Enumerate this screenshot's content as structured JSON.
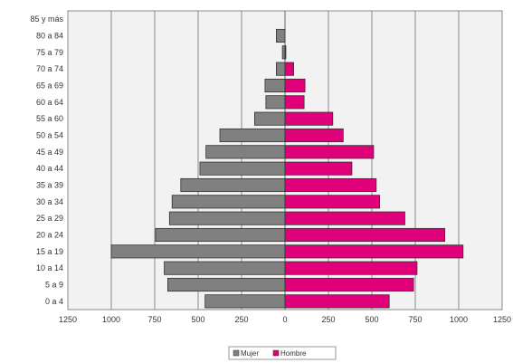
{
  "chart_data": {
    "type": "bar",
    "orientation": "horizontal",
    "categories": [
      "0 a 4",
      "5 a 9",
      "10 a 14",
      "15 a 19",
      "20 a 24",
      "25 a 29",
      "30 a 34",
      "35 a 39",
      "40 a 44",
      "45 a 49",
      "50 a 54",
      "55 a 60",
      "60 a 64",
      "65 a 69",
      "70 a 74",
      "75 a 79",
      "80 a 84",
      "85 y más"
    ],
    "series": [
      {
        "name": "Mujer",
        "color": "#808080",
        "values": [
          460,
          675,
          695,
          1000,
          745,
          665,
          650,
          600,
          490,
          455,
          375,
          175,
          110,
          115,
          50,
          15,
          50,
          0
        ]
      },
      {
        "name": "Hombre",
        "color": "#e0007a",
        "values": [
          600,
          740,
          760,
          1025,
          920,
          690,
          545,
          525,
          385,
          510,
          335,
          275,
          110,
          115,
          50,
          5,
          0,
          0
        ]
      }
    ],
    "xlim": [
      -1250,
      1250
    ],
    "xticks": [
      -1250,
      -1000,
      -750,
      -500,
      -250,
      0,
      250,
      500,
      750,
      1000,
      1250
    ],
    "xtick_labels": [
      "1250",
      "1000",
      "750",
      "500",
      "250",
      "0",
      "250",
      "500",
      "750",
      "1000",
      "1250"
    ],
    "grid": true,
    "legend_position": "bottom-center",
    "plot_background": "#f2f2f2"
  }
}
